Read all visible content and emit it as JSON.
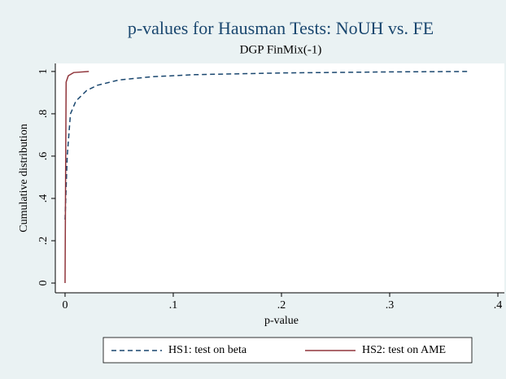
{
  "chart_data": {
    "type": "line",
    "title": "p-values for Hausman Tests: NoUH vs. FE",
    "subtitle": "DGP FinMix(-1)",
    "x_label": "p-value",
    "y_label": "Cumulative distribution",
    "xlim": [
      -0.009,
      0.406
    ],
    "ylim": [
      -0.046,
      1.038
    ],
    "xticks": [
      0,
      {
        "value": 0.1,
        "label": ".1"
      },
      {
        "value": 0.2,
        "label": ".2"
      },
      {
        "value": 0.3,
        "label": ".3"
      },
      {
        "value": 0.4,
        "label": ".4"
      }
    ],
    "yticks": [
      0,
      {
        "value": 0.2,
        "label": ".2"
      },
      {
        "value": 0.4,
        "label": ".4"
      },
      {
        "value": 0.6,
        "label": ".6"
      },
      {
        "value": 0.8,
        "label": ".8"
      },
      1
    ],
    "grid": false,
    "legend": "bottom",
    "series": [
      {
        "name": "HS1: test on beta",
        "color": "#1a476f",
        "dash": true,
        "x": [
          0,
          0.002,
          0.005,
          0.01,
          0.02,
          0.03,
          0.05,
          0.08,
          0.12,
          0.2,
          0.3,
          0.372
        ],
        "values": [
          0.3,
          0.6,
          0.8,
          0.86,
          0.91,
          0.935,
          0.96,
          0.975,
          0.985,
          0.993,
          0.998,
          1
        ]
      },
      {
        "name": "HS2: test on AME",
        "color": "#90353b",
        "dash": false,
        "x": [
          0,
          0.0005,
          0.001,
          0.003,
          0.008,
          0.022
        ],
        "values": [
          0,
          0.5,
          0.95,
          0.98,
          0.995,
          1
        ]
      }
    ]
  }
}
